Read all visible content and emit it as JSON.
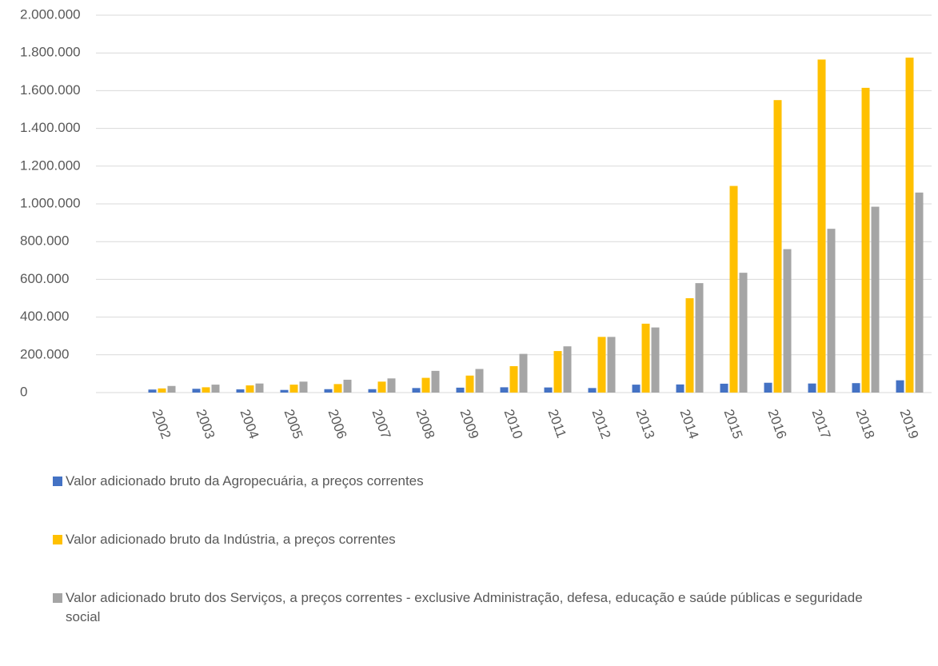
{
  "chart_data": {
    "type": "bar",
    "categories": [
      null,
      "2002",
      "2003",
      "2004",
      "2005",
      "2006",
      "2007",
      "2008",
      "2009",
      "2010",
      "2011",
      "2012",
      "2013",
      "2014",
      "2015",
      "2016",
      "2017",
      "2018",
      "2019"
    ],
    "series": [
      {
        "name": "Valor adicionado bruto da Agropecuária, a preços correntes",
        "color": "#4472c4",
        "values": [
          null,
          16000,
          20000,
          17000,
          14000,
          18000,
          18000,
          24000,
          26000,
          28000,
          27000,
          24000,
          42000,
          43000,
          47000,
          52000,
          48000,
          50000,
          65000
        ]
      },
      {
        "name": "Valor adicionado bruto da Indústria, a preços correntes",
        "color": "#ffc000",
        "values": [
          null,
          22000,
          28000,
          38000,
          42000,
          45000,
          58000,
          78000,
          90000,
          140000,
          220000,
          295000,
          365000,
          500000,
          1095000,
          1550000,
          1765000,
          1615000,
          1775000
        ]
      },
      {
        "name": "Valor adicionado bruto dos Serviços, a preços correntes - exclusive Administração, defesa, educação e saúde públicas e seguridade social",
        "color": "#a5a5a5",
        "values": [
          null,
          35000,
          42000,
          48000,
          58000,
          68000,
          75000,
          115000,
          125000,
          205000,
          245000,
          295000,
          345000,
          580000,
          635000,
          760000,
          868000,
          985000,
          1060000
        ]
      }
    ],
    "ylim": [
      0,
      2000000
    ],
    "yticks": [
      0,
      {
        "value": 200000,
        "label": "200.000"
      },
      {
        "value": 400000,
        "label": "400.000"
      },
      {
        "value": 600000,
        "label": "600.000"
      },
      {
        "value": 800000,
        "label": "800.000"
      },
      {
        "value": 1000000,
        "label": "1.000.000"
      },
      {
        "value": 1200000,
        "label": "1.200.000"
      },
      {
        "value": 1400000,
        "label": "1.400.000"
      },
      {
        "value": 1600000,
        "label": "1.600.000"
      },
      {
        "value": 1800000,
        "label": "1.800.000"
      },
      {
        "value": 2000000,
        "label": "2.000.000"
      }
    ],
    "grid": true,
    "legend": "bottom"
  }
}
